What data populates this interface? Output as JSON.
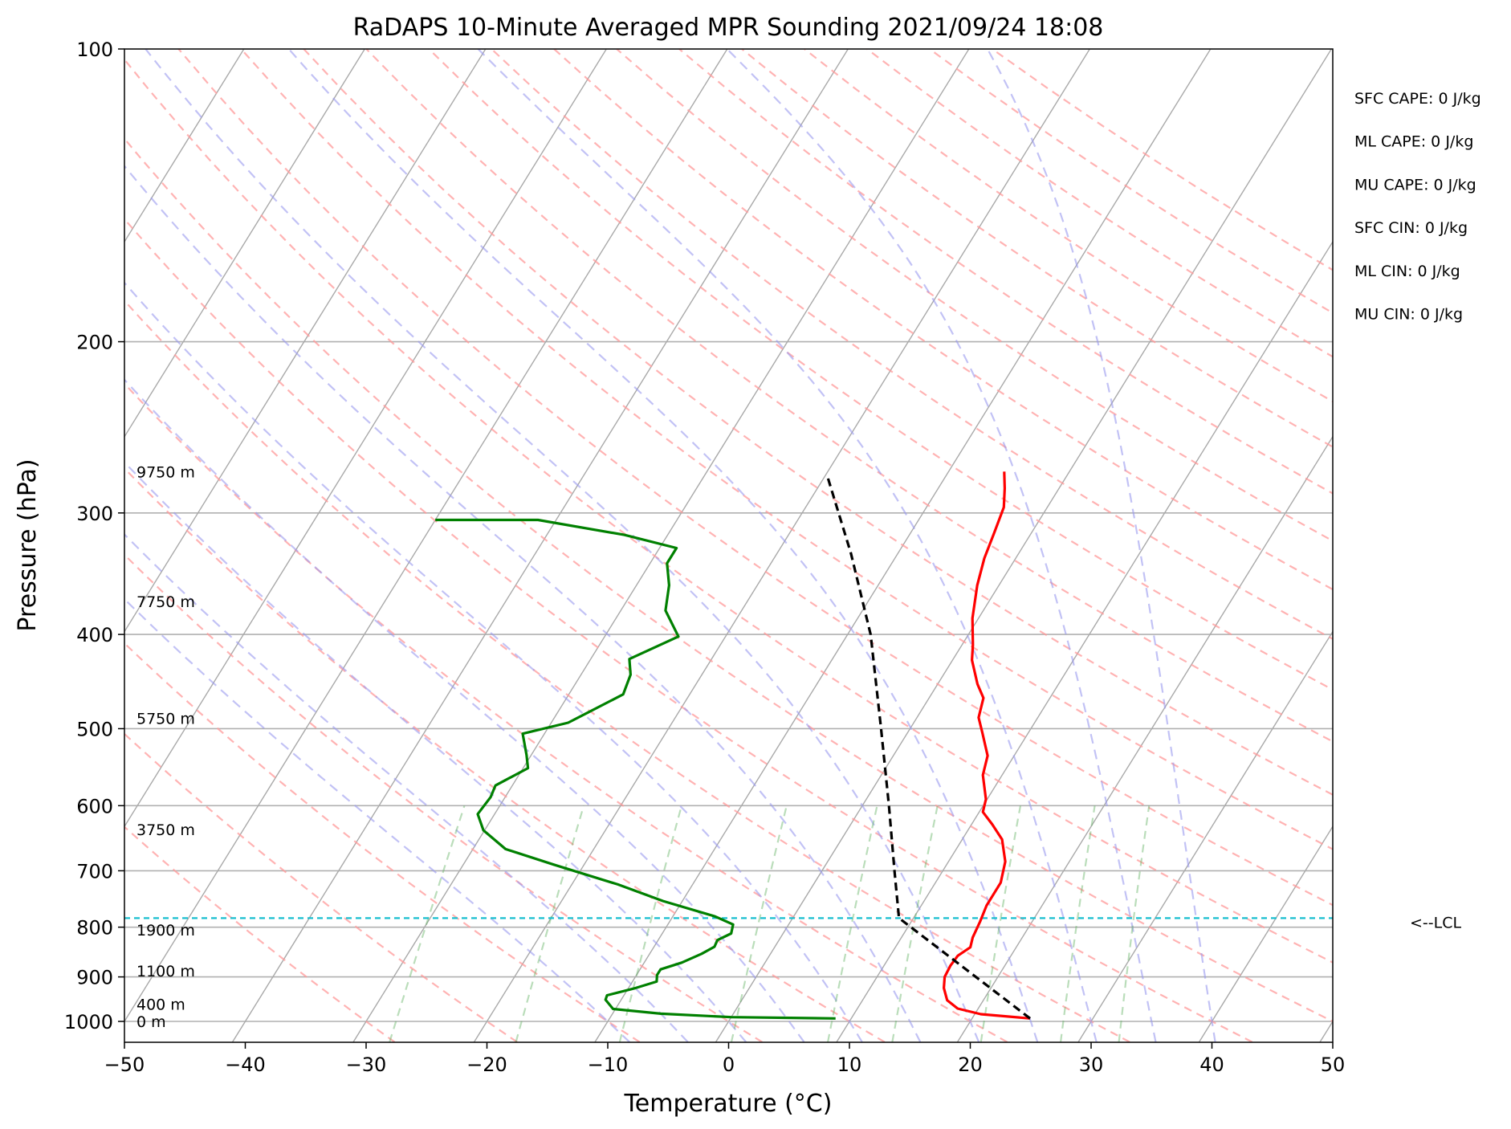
{
  "chart_data": {
    "type": "skew-t sounding",
    "title": "RaDAPS 10-Minute Averaged MPR Sounding 2021/09/24 18:08",
    "xlabel": "Temperature (°C)",
    "ylabel": "Pressure (hPa)",
    "xlim": [
      -50,
      50
    ],
    "ylim": [
      1050,
      100
    ],
    "y_scale": "log",
    "x_ticks": [
      -50,
      -40,
      -30,
      -20,
      -10,
      0,
      10,
      20,
      30,
      40,
      50
    ],
    "y_ticks": [
      100,
      200,
      300,
      400,
      500,
      600,
      700,
      800,
      900,
      1000
    ],
    "grid": true,
    "height_labels": [
      {
        "text": "9750 m",
        "p": 272
      },
      {
        "text": "7750 m",
        "p": 370
      },
      {
        "text": "5750 m",
        "p": 488
      },
      {
        "text": "3750 m",
        "p": 635
      },
      {
        "text": "1900 m",
        "p": 805
      },
      {
        "text": "1100 m",
        "p": 887
      },
      {
        "text": "400 m",
        "p": 960
      },
      {
        "text": "0 m",
        "p": 1000
      }
    ],
    "indices": [
      "SFC CAPE: 0 J/kg",
      "ML CAPE: 0 J/kg",
      "MU CAPE: 0 J/kg",
      "SFC CIN: 0 J/kg",
      "ML CIN: 0 J/kg",
      "MU CIN: 0 J/kg"
    ],
    "lcl": {
      "label": "<--LCL",
      "p": 783
    },
    "series": [
      {
        "key": "temperature",
        "color": "#ff0000",
        "points": [
          [
            993,
            24.8
          ],
          [
            983,
            20.5
          ],
          [
            970,
            18.3
          ],
          [
            951,
            17.0
          ],
          [
            924,
            16.1
          ],
          [
            900,
            15.6
          ],
          [
            876,
            15.5
          ],
          [
            856,
            15.6
          ],
          [
            839,
            16.2
          ],
          [
            820,
            15.9
          ],
          [
            790,
            15.7
          ],
          [
            760,
            15.4
          ],
          [
            720,
            15.4
          ],
          [
            685,
            14.7
          ],
          [
            650,
            13.3
          ],
          [
            627,
            11.7
          ],
          [
            609,
            10.3
          ],
          [
            591,
            9.9
          ],
          [
            558,
            8.4
          ],
          [
            533,
            7.8
          ],
          [
            505,
            6.2
          ],
          [
            487,
            5.1
          ],
          [
            465,
            4.5
          ],
          [
            450,
            3.3
          ],
          [
            425,
            1.6
          ],
          [
            410,
            0.9
          ],
          [
            385,
            -0.5
          ],
          [
            356,
            -1.8
          ],
          [
            334,
            -2.6
          ],
          [
            314,
            -3.1
          ],
          [
            296,
            -3.6
          ],
          [
            283,
            -4.5
          ],
          [
            272,
            -5.4
          ]
        ]
      },
      {
        "key": "dewpoint",
        "color": "#008000",
        "points": [
          [
            993,
            8.7
          ],
          [
            990,
            0.0
          ],
          [
            982,
            -6.0
          ],
          [
            971,
            -10.2
          ],
          [
            950,
            -11.3
          ],
          [
            940,
            -11.4
          ],
          [
            924,
            -9.4
          ],
          [
            910,
            -8.0
          ],
          [
            896,
            -8.3
          ],
          [
            884,
            -8.3
          ],
          [
            870,
            -6.9
          ],
          [
            852,
            -5.7
          ],
          [
            838,
            -5.0
          ],
          [
            825,
            -5.1
          ],
          [
            812,
            -4.3
          ],
          [
            795,
            -4.6
          ],
          [
            780,
            -6.5
          ],
          [
            752,
            -11.6
          ],
          [
            723,
            -16.2
          ],
          [
            690,
            -22.5
          ],
          [
            665,
            -27.3
          ],
          [
            636,
            -30.1
          ],
          [
            612,
            -31.4
          ],
          [
            588,
            -31.2
          ],
          [
            572,
            -31.4
          ],
          [
            549,
            -29.6
          ],
          [
            532,
            -30.4
          ],
          [
            506,
            -31.8
          ],
          [
            493,
            -28.6
          ],
          [
            461,
            -25.5
          ],
          [
            440,
            -25.9
          ],
          [
            424,
            -26.8
          ],
          [
            402,
            -23.9
          ],
          [
            378,
            -26.3
          ],
          [
            356,
            -27.3
          ],
          [
            338,
            -28.6
          ],
          [
            326,
            -28.6
          ],
          [
            316,
            -33.6
          ],
          [
            305,
            -41.5
          ],
          [
            305,
            -50.0
          ]
        ]
      },
      {
        "key": "parcel",
        "color": "#000000",
        "points": [
          [
            993,
            24.8
          ],
          [
            783,
            8.8
          ],
          [
            700,
            6.0
          ],
          [
            600,
            2.2
          ],
          [
            500,
            -2.4
          ],
          [
            400,
            -8.1
          ],
          [
            330,
            -13.9
          ],
          [
            275,
            -19.8
          ]
        ]
      }
    ]
  }
}
